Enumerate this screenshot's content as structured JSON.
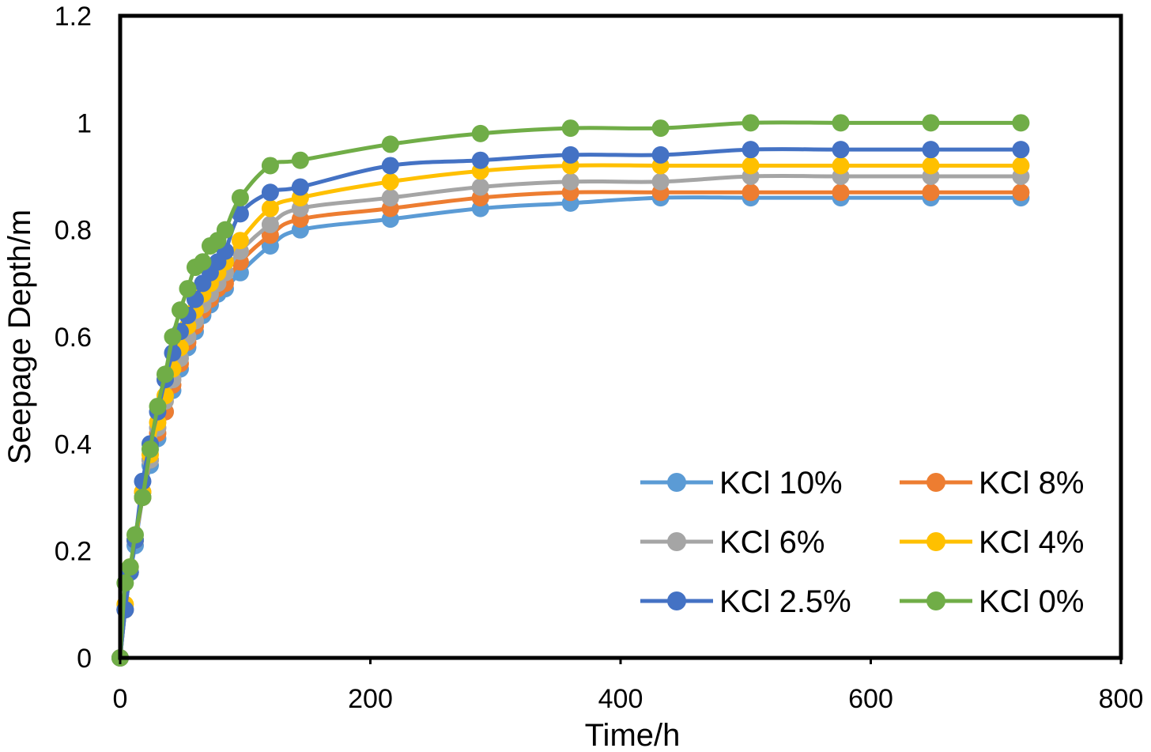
{
  "chart_data": {
    "type": "line",
    "title": "",
    "xlabel": "Time/h",
    "ylabel": "Seepage Depth/m",
    "xlim": [
      0,
      800
    ],
    "ylim": [
      0,
      1.2
    ],
    "xticks": [
      "0",
      "200",
      "400",
      "600",
      "800"
    ],
    "yticks": [
      "0",
      "0.2",
      "0.4",
      "0.6",
      "0.8",
      "1",
      "1.2"
    ],
    "grid": false,
    "legend_position": "bottom-right",
    "x": [
      0,
      4,
      8,
      12,
      18,
      24,
      30,
      36,
      42,
      48,
      54,
      60,
      66,
      72,
      78,
      84,
      96,
      120,
      144,
      216,
      288,
      360,
      432,
      504,
      576,
      648,
      720
    ],
    "series": [
      {
        "name": "KCl 10%",
        "color": "#5B9BD5",
        "values": [
          0,
          0.09,
          0.16,
          0.21,
          0.3,
          0.36,
          0.41,
          0.46,
          0.5,
          0.54,
          0.58,
          0.61,
          0.64,
          0.66,
          0.68,
          0.69,
          0.72,
          0.77,
          0.8,
          0.82,
          0.84,
          0.85,
          0.86,
          0.86,
          0.86,
          0.86,
          0.86
        ]
      },
      {
        "name": "KCl 8%",
        "color": "#ED7D31",
        "values": [
          0,
          0.09,
          0.16,
          0.22,
          0.3,
          0.37,
          0.42,
          0.46,
          0.51,
          0.55,
          0.59,
          0.62,
          0.65,
          0.67,
          0.69,
          0.7,
          0.74,
          0.79,
          0.82,
          0.84,
          0.86,
          0.87,
          0.87,
          0.87,
          0.87,
          0.87,
          0.87
        ]
      },
      {
        "name": "KCl 6%",
        "color": "#A5A5A5",
        "values": [
          0,
          0.09,
          0.16,
          0.22,
          0.31,
          0.37,
          0.43,
          0.48,
          0.52,
          0.56,
          0.6,
          0.63,
          0.66,
          0.68,
          0.7,
          0.72,
          0.76,
          0.81,
          0.84,
          0.86,
          0.88,
          0.89,
          0.89,
          0.9,
          0.9,
          0.9,
          0.9
        ]
      },
      {
        "name": "KCl 4%",
        "color": "#FFC000",
        "values": [
          0,
          0.1,
          0.17,
          0.22,
          0.31,
          0.38,
          0.44,
          0.49,
          0.54,
          0.58,
          0.62,
          0.65,
          0.68,
          0.7,
          0.72,
          0.74,
          0.78,
          0.84,
          0.86,
          0.89,
          0.91,
          0.92,
          0.92,
          0.92,
          0.92,
          0.92,
          0.92
        ]
      },
      {
        "name": "KCl 2.5%",
        "color": "#4472C4",
        "values": [
          0,
          0.09,
          0.16,
          0.22,
          0.33,
          0.4,
          0.46,
          0.52,
          0.57,
          0.61,
          0.64,
          0.67,
          0.7,
          0.72,
          0.74,
          0.76,
          0.83,
          0.87,
          0.88,
          0.92,
          0.93,
          0.94,
          0.94,
          0.95,
          0.95,
          0.95,
          0.95
        ]
      },
      {
        "name": "KCl 0%",
        "color": "#70AD47",
        "values": [
          0,
          0.14,
          0.17,
          0.23,
          0.3,
          0.39,
          0.47,
          0.53,
          0.6,
          0.65,
          0.69,
          0.73,
          0.74,
          0.77,
          0.78,
          0.8,
          0.86,
          0.92,
          0.93,
          0.96,
          0.98,
          0.99,
          0.99,
          1.0,
          1.0,
          1.0,
          1.0
        ]
      }
    ]
  }
}
